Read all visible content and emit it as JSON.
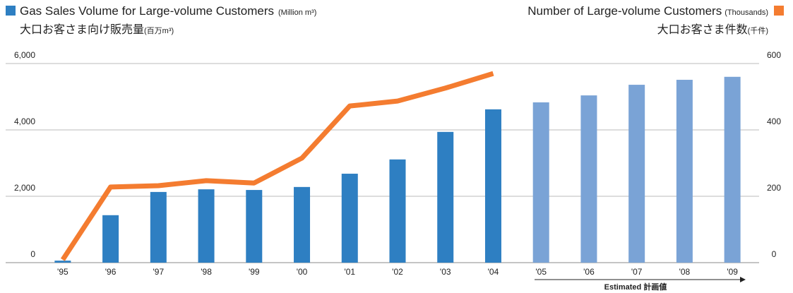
{
  "chart_data": {
    "type": "bar_line",
    "title_left": "Gas Sales Volume for Large-volume Customers",
    "unit_left": "(Million m³)",
    "subtitle_left": "大口お客さま向け販売量",
    "subunit_left": "(百万m³)",
    "title_right": "Number of Large-volume Customers",
    "unit_right": "(Thousands)",
    "subtitle_right": "大口お客さま件数",
    "subunit_right": "(千件)",
    "annotation": "Estimated 計画値",
    "categories": [
      "'95",
      "'96",
      "'97",
      "'98",
      "'99",
      "'00",
      "'01",
      "'02",
      "'03",
      "'04",
      "'05",
      "'06",
      "'07",
      "'08",
      "'09"
    ],
    "series": [
      {
        "name": "Gas Sales Volume for Large-volume Customers",
        "color": "#2e7fc2",
        "colors": [
          "#2e7fc2",
          "#2e7fc2",
          "#2e7fc2",
          "#2e7fc2",
          "#2e7fc2",
          "#2e7fc2",
          "#2e7fc2",
          "#2e7fc2",
          "#2e7fc2",
          "#2e7fc2",
          "#7aa3d6",
          "#7aa3d6",
          "#7aa3d6",
          "#7aa3d6",
          "#7aa3d6"
        ],
        "values": [
          60,
          1430,
          2130,
          2210,
          2190,
          2280,
          2680,
          3110,
          3940,
          4620,
          4830,
          5040,
          5360,
          5510,
          5600
        ]
      },
      {
        "name": "Number of Large-volume Customers",
        "color": "#f47c30",
        "axis": "y2",
        "values": [
          9,
          228,
          232,
          247,
          240,
          315,
          472,
          487,
          526,
          570,
          null,
          null,
          null,
          null,
          null
        ]
      }
    ],
    "ylim": [
      0,
      6000
    ],
    "yticks": [
      0,
      {
        "value": 2000,
        "label": "2,000"
      },
      {
        "value": 4000,
        "label": "4,000"
      },
      {
        "value": 6000,
        "label": "6,000"
      }
    ],
    "y2lim": [
      0,
      600
    ],
    "y2ticks": [
      0,
      200,
      400,
      600
    ],
    "grid": true
  }
}
